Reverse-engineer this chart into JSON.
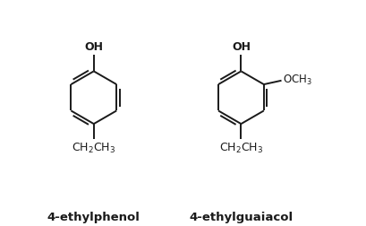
{
  "background_color": "#ffffff",
  "line_color": "#1a1a1a",
  "line_width": 1.4,
  "label1": "4-ethylphenol",
  "label2": "4-ethylguaiacol",
  "oh_label": "OH",
  "och3_label": "OCH$_3$",
  "ch2ch3_label": "CH$_2$CH$_3$",
  "font_size_label": 9.5,
  "font_size_sub": 9.0,
  "fig_w": 4.1,
  "fig_h": 2.52,
  "dpi": 100
}
